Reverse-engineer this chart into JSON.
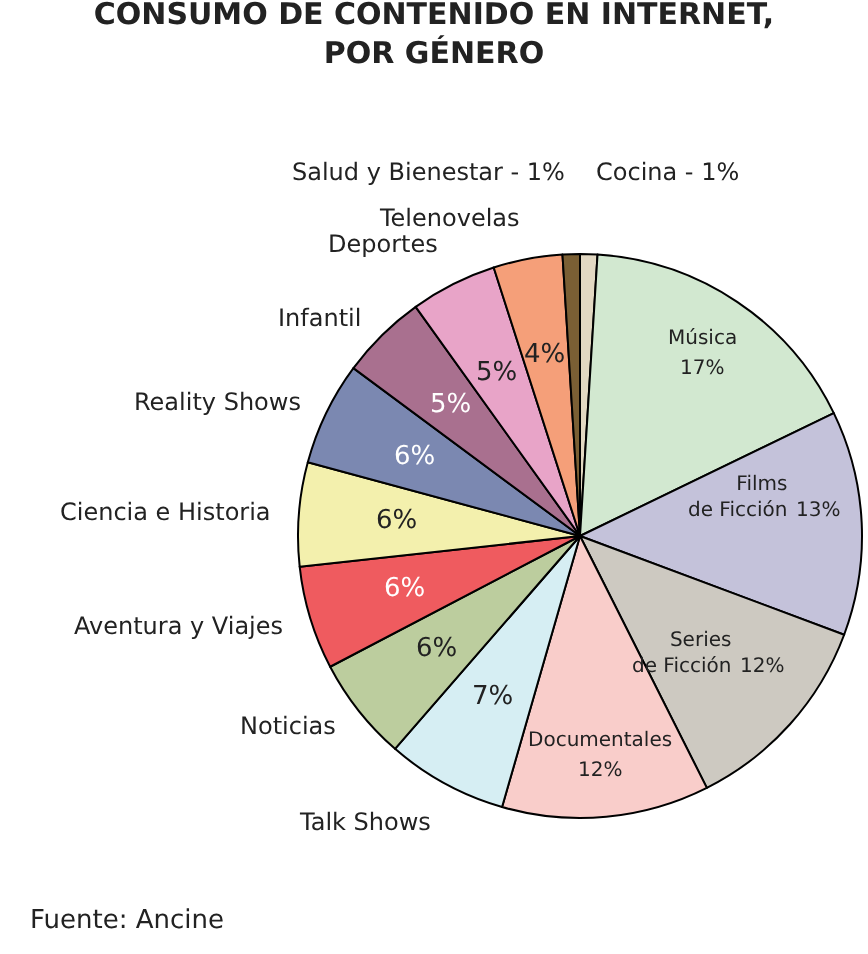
{
  "chart_data": {
    "type": "pie",
    "title": "CONSUMO DE CONTENIDO EN INTERNET,\nPOR GÉNERO",
    "categories": [
      "Cocina",
      "Música",
      "Films\nde Ficción",
      "Series\nde Ficción",
      "Documentales",
      "Talk Shows",
      "Noticias",
      "Aventura y Viajes",
      "Ciencia e Historia",
      "Reality Shows",
      "Infantil",
      "Deportes",
      "Telenovelas",
      "Salud y Bienestar"
    ],
    "values": [
      1,
      17,
      13,
      12,
      12,
      7,
      6,
      6,
      6,
      6,
      5,
      5,
      4,
      1
    ],
    "value_labels": [
      "1%",
      "17%",
      "13%",
      "12%",
      "12%",
      "7%",
      "6%",
      "6%",
      "6%",
      "6%",
      "5%",
      "5%",
      "4%",
      "1%"
    ],
    "colors": [
      "#e2d8c2",
      "#d2e8d0",
      "#c4c2da",
      "#cdc9c1",
      "#f9cdca",
      "#d6eef3",
      "#bccd9e",
      "#ef5b5f",
      "#f3f0ad",
      "#7b88b1",
      "#a9708f",
      "#e8a4c8",
      "#f59f79",
      "#7a5f34"
    ],
    "annotations": [
      "Fuente: Ancine"
    ]
  }
}
